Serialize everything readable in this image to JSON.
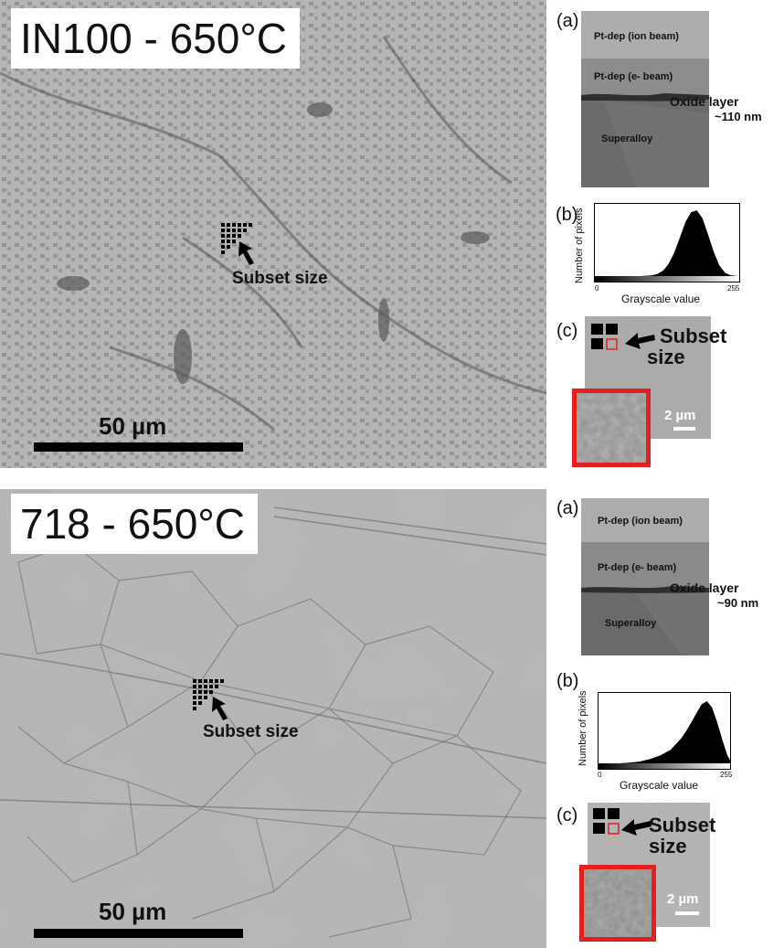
{
  "top": {
    "title": "IN100 - 650°C",
    "scale_label": "50 µm",
    "subset_label": "Subset size",
    "panel_a": {
      "letter": "(a)",
      "layer1": "Pt-dep (ion beam)",
      "layer2": "Pt-dep (e- beam)",
      "oxide": "Oxide layer",
      "thickness": "~110 nm",
      "substrate": "Superalloy"
    },
    "panel_b": {
      "letter": "(b)",
      "ylabel": "Number of pixels",
      "xlabel": "Grayscale value",
      "tick_min": "0",
      "tick_max": "255"
    },
    "panel_c": {
      "letter": "(c)",
      "label_line1": "Subset",
      "label_line2": "size",
      "scale_label": "2 µm"
    }
  },
  "bottom": {
    "title": "718 - 650°C",
    "scale_label": "50 µm",
    "subset_label": "Subset size",
    "panel_a": {
      "letter": "(a)",
      "layer1": "Pt-dep (ion beam)",
      "layer2": "Pt-dep (e- beam)",
      "oxide": "Oxide layer",
      "thickness": "~90 nm",
      "substrate": "Superalloy"
    },
    "panel_b": {
      "letter": "(b)",
      "ylabel": "Number of pixels",
      "xlabel": "Grayscale value",
      "tick_min": "0",
      "tick_max": "255"
    },
    "panel_c": {
      "letter": "(c)",
      "label_line1": "Subset",
      "label_line2": "size",
      "scale_label": "2 µm"
    }
  },
  "chart_data": [
    {
      "type": "area",
      "title": "",
      "xlabel": "Grayscale value",
      "ylabel": "Number of pixels",
      "xlim": [
        0,
        255
      ],
      "series": [
        {
          "x": [
            0,
            40,
            80,
            100,
            110,
            120,
            130,
            140,
            150,
            160,
            170,
            180,
            190,
            200,
            210,
            220,
            230,
            240,
            255
          ],
          "y": [
            0,
            0,
            0,
            0.01,
            0.03,
            0.08,
            0.18,
            0.35,
            0.58,
            0.82,
            0.97,
            1.0,
            0.88,
            0.63,
            0.37,
            0.16,
            0.05,
            0.01,
            0
          ]
        }
      ]
    },
    {
      "type": "area",
      "title": "",
      "xlabel": "Grayscale value",
      "ylabel": "Number of pixels",
      "xlim": [
        0,
        255
      ],
      "series": [
        {
          "x": [
            0,
            40,
            60,
            80,
            100,
            120,
            140,
            160,
            170,
            180,
            190,
            200,
            210,
            220,
            230,
            240,
            250,
            255
          ],
          "y": [
            0,
            0,
            0.01,
            0.03,
            0.07,
            0.13,
            0.22,
            0.4,
            0.52,
            0.66,
            0.81,
            0.95,
            1.0,
            0.9,
            0.66,
            0.38,
            0.12,
            0.05
          ]
        }
      ]
    }
  ]
}
